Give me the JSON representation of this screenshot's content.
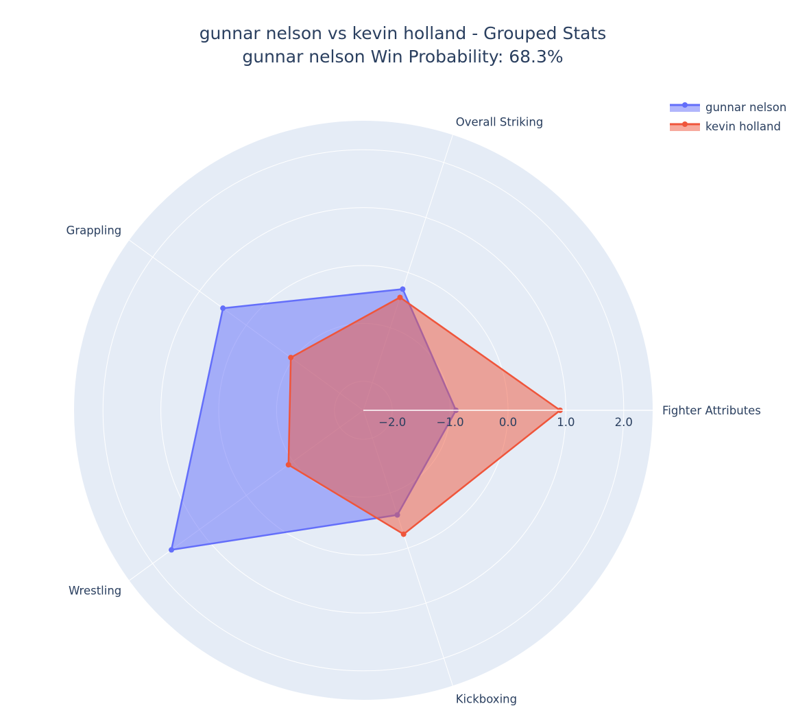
{
  "title": {
    "line1": "gunnar nelson vs kevin holland - Grouped Stats",
    "line2": "gunnar nelson Win Probability: 68.3%"
  },
  "colors": {
    "background": "#e5ecf6",
    "grid": "#ffffff",
    "gunnar": "#636efa",
    "kevin": "#ef553b"
  },
  "chart_data": {
    "type": "radar",
    "title": "gunnar nelson vs kevin holland - Grouped Stats",
    "subtitle": "gunnar nelson Win Probability: 68.3%",
    "categories": [
      "Fighter Attributes",
      "Overall Striking",
      "Grappling",
      "Wrestling",
      "Kickboxing"
    ],
    "series": [
      {
        "name": "gunnar nelson",
        "values": [
          -0.9,
          -0.3,
          0.5,
          1.6,
          -0.6
        ]
      },
      {
        "name": "kevin holland",
        "values": [
          0.9,
          -0.45,
          -0.95,
          -0.9,
          -0.25
        ]
      }
    ],
    "radial_range": [
      -2.5,
      2.5
    ],
    "radial_ticks": [
      -2.0,
      -1.0,
      0.0,
      1.0,
      2.0
    ],
    "radial_tick_labels": [
      "−2.0",
      "−1.0",
      "0.0",
      "1.0",
      "2.0"
    ],
    "legend_position": "top-right",
    "fill": "toself"
  }
}
